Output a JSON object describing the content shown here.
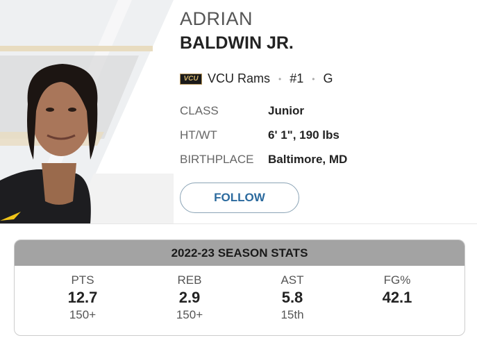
{
  "player": {
    "first_name": "ADRIAN",
    "last_name": "BALDWIN JR.",
    "logo_text": "VCU",
    "team": "VCU Rams",
    "number": "#1",
    "position": "G",
    "separator": "•"
  },
  "bio": [
    {
      "label": "CLASS",
      "value": "Junior"
    },
    {
      "label": "HT/WT",
      "value": "6' 1\", 190 lbs"
    },
    {
      "label": "BIRTHPLACE",
      "value": "Baltimore, MD"
    }
  ],
  "follow_label": "FOLLOW",
  "stats": {
    "title": "2022-23 SEASON STATS",
    "items": [
      {
        "label": "PTS",
        "value": "12.7",
        "rank": "150+"
      },
      {
        "label": "REB",
        "value": "2.9",
        "rank": "150+"
      },
      {
        "label": "AST",
        "value": "5.8",
        "rank": "15th"
      },
      {
        "label": "FG%",
        "value": "42.1",
        "rank": ""
      }
    ]
  },
  "colors": {
    "accent": "#2b6a9e",
    "header_band": "#a3a3a3",
    "vcu_gold": "#d4b46a"
  }
}
